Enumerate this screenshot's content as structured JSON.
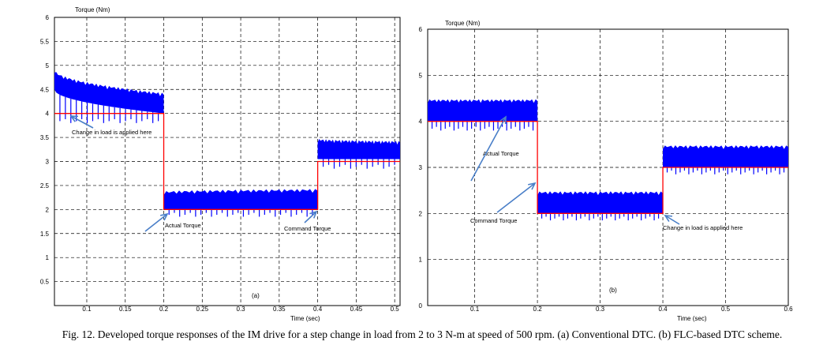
{
  "chart_data": [
    {
      "type": "line",
      "panel_label": "(a)",
      "ylabel": "Torque (Nm)",
      "xlabel": "Time (sec)",
      "xlim": [
        0.058,
        0.507
      ],
      "ylim": [
        0,
        6
      ],
      "xticks": [
        0.1,
        0.15,
        0.2,
        0.25,
        0.3,
        0.35,
        0.4,
        0.45,
        0.5
      ],
      "xtick_labels": [
        "0.1",
        "0.15",
        "0.2",
        "0.25",
        "0.3",
        "0.35",
        "0.4",
        "0.45",
        "0.5"
      ],
      "yticks": [
        0.5,
        1,
        1.5,
        2,
        2.5,
        3,
        3.5,
        4,
        4.5,
        5,
        5.5,
        6
      ],
      "ytick_labels": [
        "0.5",
        "1",
        "1.5",
        "2",
        "2.5",
        "3",
        "3.5",
        "4",
        "4.5",
        "5",
        "5.5",
        "6"
      ],
      "grid": true,
      "series": [
        {
          "name": "Command Torque",
          "color": "#ff0000",
          "x": [
            0.058,
            0.2,
            0.2,
            0.4,
            0.4,
            0.507
          ],
          "y": [
            4,
            4,
            2,
            2,
            3,
            3
          ]
        },
        {
          "name": "Actual Torque",
          "color": "#0000ff",
          "segments": [
            {
              "x": [
                0.058,
                0.2
              ],
              "upper_start": 4.85,
              "upper_end": 4.35,
              "lower_start": 4.5,
              "lower_end": 4.0,
              "dip_to": 3.8
            },
            {
              "x": [
                0.2,
                0.4
              ],
              "upper_start": 2.3,
              "upper_end": 2.35,
              "lower_start": 2.0,
              "lower_end": 2.0,
              "dip_to": 1.85
            },
            {
              "x": [
                0.4,
                0.507
              ],
              "upper_start": 3.4,
              "upper_end": 3.35,
              "lower_start": 3.05,
              "lower_end": 3.05,
              "dip_to": 2.85
            }
          ]
        }
      ],
      "annotations": [
        "Command Torque",
        "Actual Torque",
        "Change in load is applied here"
      ]
    },
    {
      "type": "line",
      "panel_label": "(b)",
      "ylabel": "Torque (Nm)",
      "xlabel": "Time (sec)",
      "xlim": [
        0.025,
        0.6
      ],
      "ylim": [
        0,
        6
      ],
      "xticks": [
        0.1,
        0.2,
        0.3,
        0.4,
        0.5,
        0.6
      ],
      "xtick_labels": [
        "0.1",
        "0.2",
        "0.3",
        "0.4",
        "0.5",
        "0.6"
      ],
      "yticks": [
        0,
        1,
        2,
        3,
        4,
        5,
        6
      ],
      "ytick_labels": [
        "0",
        "1",
        "2",
        "3",
        "4",
        "5",
        "6"
      ],
      "grid": true,
      "series": [
        {
          "name": "Command Torque",
          "color": "#ff0000",
          "x": [
            0.025,
            0.2,
            0.2,
            0.4,
            0.4,
            0.6
          ],
          "y": [
            4,
            4,
            2,
            2,
            3,
            3
          ]
        },
        {
          "name": "Actual Torque",
          "color": "#0000ff",
          "segments": [
            {
              "x": [
                0.025,
                0.2
              ],
              "upper_start": 4.4,
              "upper_end": 4.4,
              "lower_start": 4.0,
              "lower_end": 4.0,
              "dip_to": 3.8
            },
            {
              "x": [
                0.2,
                0.4
              ],
              "upper_start": 2.4,
              "upper_end": 2.4,
              "lower_start": 2.0,
              "lower_end": 2.0,
              "dip_to": 1.85
            },
            {
              "x": [
                0.4,
                0.6
              ],
              "upper_start": 3.4,
              "upper_end": 3.4,
              "lower_start": 3.0,
              "lower_end": 3.0,
              "dip_to": 2.85
            }
          ]
        }
      ],
      "annotations": [
        "Actual Torque",
        "Command Torque",
        "Change in load is applied here"
      ]
    }
  ],
  "caption": "Fig. 12. Developed torque responses of the IM drive for a step change in load from 2 to 3 N-m at speed of 500 rpm. (a) Conventional DTC. (b) FLC-based DTC scheme."
}
